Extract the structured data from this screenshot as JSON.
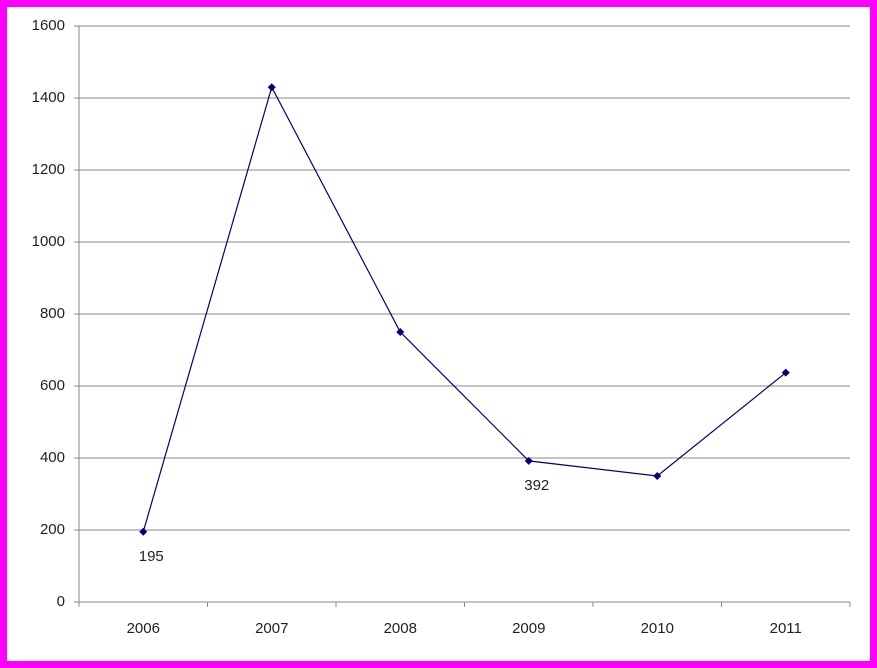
{
  "chart_data": {
    "type": "line",
    "categories": [
      "2006",
      "2007",
      "2008",
      "2009",
      "2010",
      "2011"
    ],
    "series": [
      {
        "color": "#000080",
        "values": [
          195,
          1430,
          750,
          392,
          350,
          637
        ]
      }
    ],
    "value_labels": [
      "195",
      null,
      null,
      "392",
      null,
      null
    ],
    "ylim": [
      0,
      1600
    ],
    "yticks": [
      0,
      200,
      400,
      600,
      800,
      1000,
      1200,
      1400,
      1600
    ],
    "grid": true
  }
}
